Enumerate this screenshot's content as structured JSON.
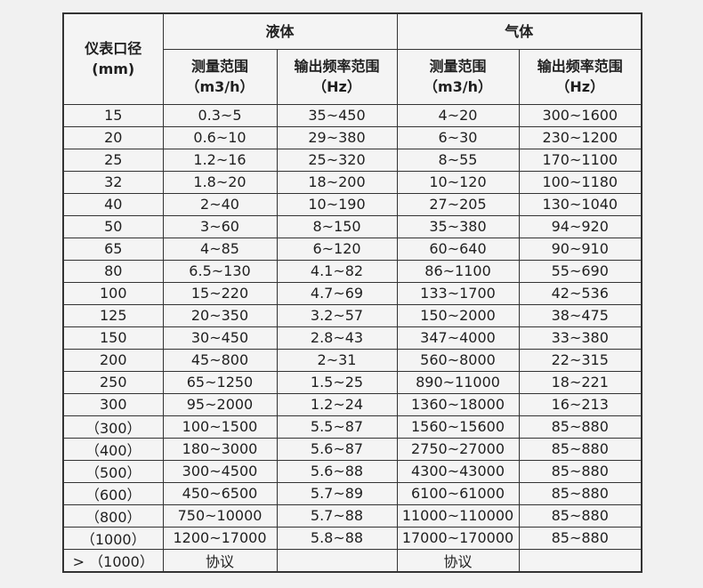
{
  "colors": {
    "page_background": "#f1f1f1",
    "cell_background": "#f4f4f4",
    "border": "#333333",
    "text": "#1f1f1f"
  },
  "table": {
    "corner": {
      "line1": "仪表口径",
      "line2": "(mm)"
    },
    "group_headers": [
      {
        "label": "液体"
      },
      {
        "label": "气体"
      }
    ],
    "sub_headers": [
      {
        "line1": "测量范围",
        "line2": "（m3/h）"
      },
      {
        "line1": "输出频率范围",
        "line2": "（Hz）"
      },
      {
        "line1": "测量范围",
        "line2": "（m3/h）"
      },
      {
        "line1": "输出频率范围",
        "line2": "（Hz）"
      }
    ],
    "rows": [
      {
        "diameter": "15",
        "liquid_range": "0.3~5",
        "liquid_freq": "35~450",
        "gas_range": "4~20",
        "gas_freq": "300~1600"
      },
      {
        "diameter": "20",
        "liquid_range": "0.6~10",
        "liquid_freq": "29~380",
        "gas_range": "6~30",
        "gas_freq": "230~1200"
      },
      {
        "diameter": "25",
        "liquid_range": "1.2~16",
        "liquid_freq": "25~320",
        "gas_range": "8~55",
        "gas_freq": "170~1100"
      },
      {
        "diameter": "32",
        "liquid_range": "1.8~20",
        "liquid_freq": "18~200",
        "gas_range": "10~120",
        "gas_freq": "100~1180"
      },
      {
        "diameter": "40",
        "liquid_range": "2~40",
        "liquid_freq": "10~190",
        "gas_range": "27~205",
        "gas_freq": "130~1040"
      },
      {
        "diameter": "50",
        "liquid_range": "3~60",
        "liquid_freq": "8~150",
        "gas_range": "35~380",
        "gas_freq": "94~920"
      },
      {
        "diameter": "65",
        "liquid_range": "4~85",
        "liquid_freq": "6~120",
        "gas_range": "60~640",
        "gas_freq": "90~910"
      },
      {
        "diameter": "80",
        "liquid_range": "6.5~130",
        "liquid_freq": "4.1~82",
        "gas_range": "86~1100",
        "gas_freq": "55~690"
      },
      {
        "diameter": "100",
        "liquid_range": "15~220",
        "liquid_freq": "4.7~69",
        "gas_range": "133~1700",
        "gas_freq": "42~536"
      },
      {
        "diameter": "125",
        "liquid_range": "20~350",
        "liquid_freq": "3.2~57",
        "gas_range": "150~2000",
        "gas_freq": "38~475"
      },
      {
        "diameter": "150",
        "liquid_range": "30~450",
        "liquid_freq": "2.8~43",
        "gas_range": "347~4000",
        "gas_freq": "33~380"
      },
      {
        "diameter": "200",
        "liquid_range": "45~800",
        "liquid_freq": "2~31",
        "gas_range": "560~8000",
        "gas_freq": "22~315"
      },
      {
        "diameter": "250",
        "liquid_range": "65~1250",
        "liquid_freq": "1.5~25",
        "gas_range": "890~11000",
        "gas_freq": "18~221"
      },
      {
        "diameter": "300",
        "liquid_range": "95~2000",
        "liquid_freq": "1.2~24",
        "gas_range": "1360~18000",
        "gas_freq": "16~213"
      },
      {
        "diameter": "（300）",
        "liquid_range": "100~1500",
        "liquid_freq": "5.5~87",
        "gas_range": "1560~15600",
        "gas_freq": "85~880"
      },
      {
        "diameter": "（400）",
        "liquid_range": "180~3000",
        "liquid_freq": "5.6~87",
        "gas_range": "2750~27000",
        "gas_freq": "85~880"
      },
      {
        "diameter": "（500）",
        "liquid_range": "300~4500",
        "liquid_freq": "5.6~88",
        "gas_range": "4300~43000",
        "gas_freq": "85~880"
      },
      {
        "diameter": "（600）",
        "liquid_range": "450~6500",
        "liquid_freq": "5.7~89",
        "gas_range": "6100~61000",
        "gas_freq": "85~880"
      },
      {
        "diameter": "（800）",
        "liquid_range": "750~10000",
        "liquid_freq": "5.7~88",
        "gas_range": "11000~110000",
        "gas_freq": "85~880"
      },
      {
        "diameter": "（1000）",
        "liquid_range": "1200~17000",
        "liquid_freq": "5.8~88",
        "gas_range": "17000~170000",
        "gas_freq": "85~880"
      },
      {
        "diameter": "> （1000）",
        "liquid_range": "协议",
        "liquid_freq": "",
        "gas_range": "协议",
        "gas_freq": ""
      }
    ]
  }
}
